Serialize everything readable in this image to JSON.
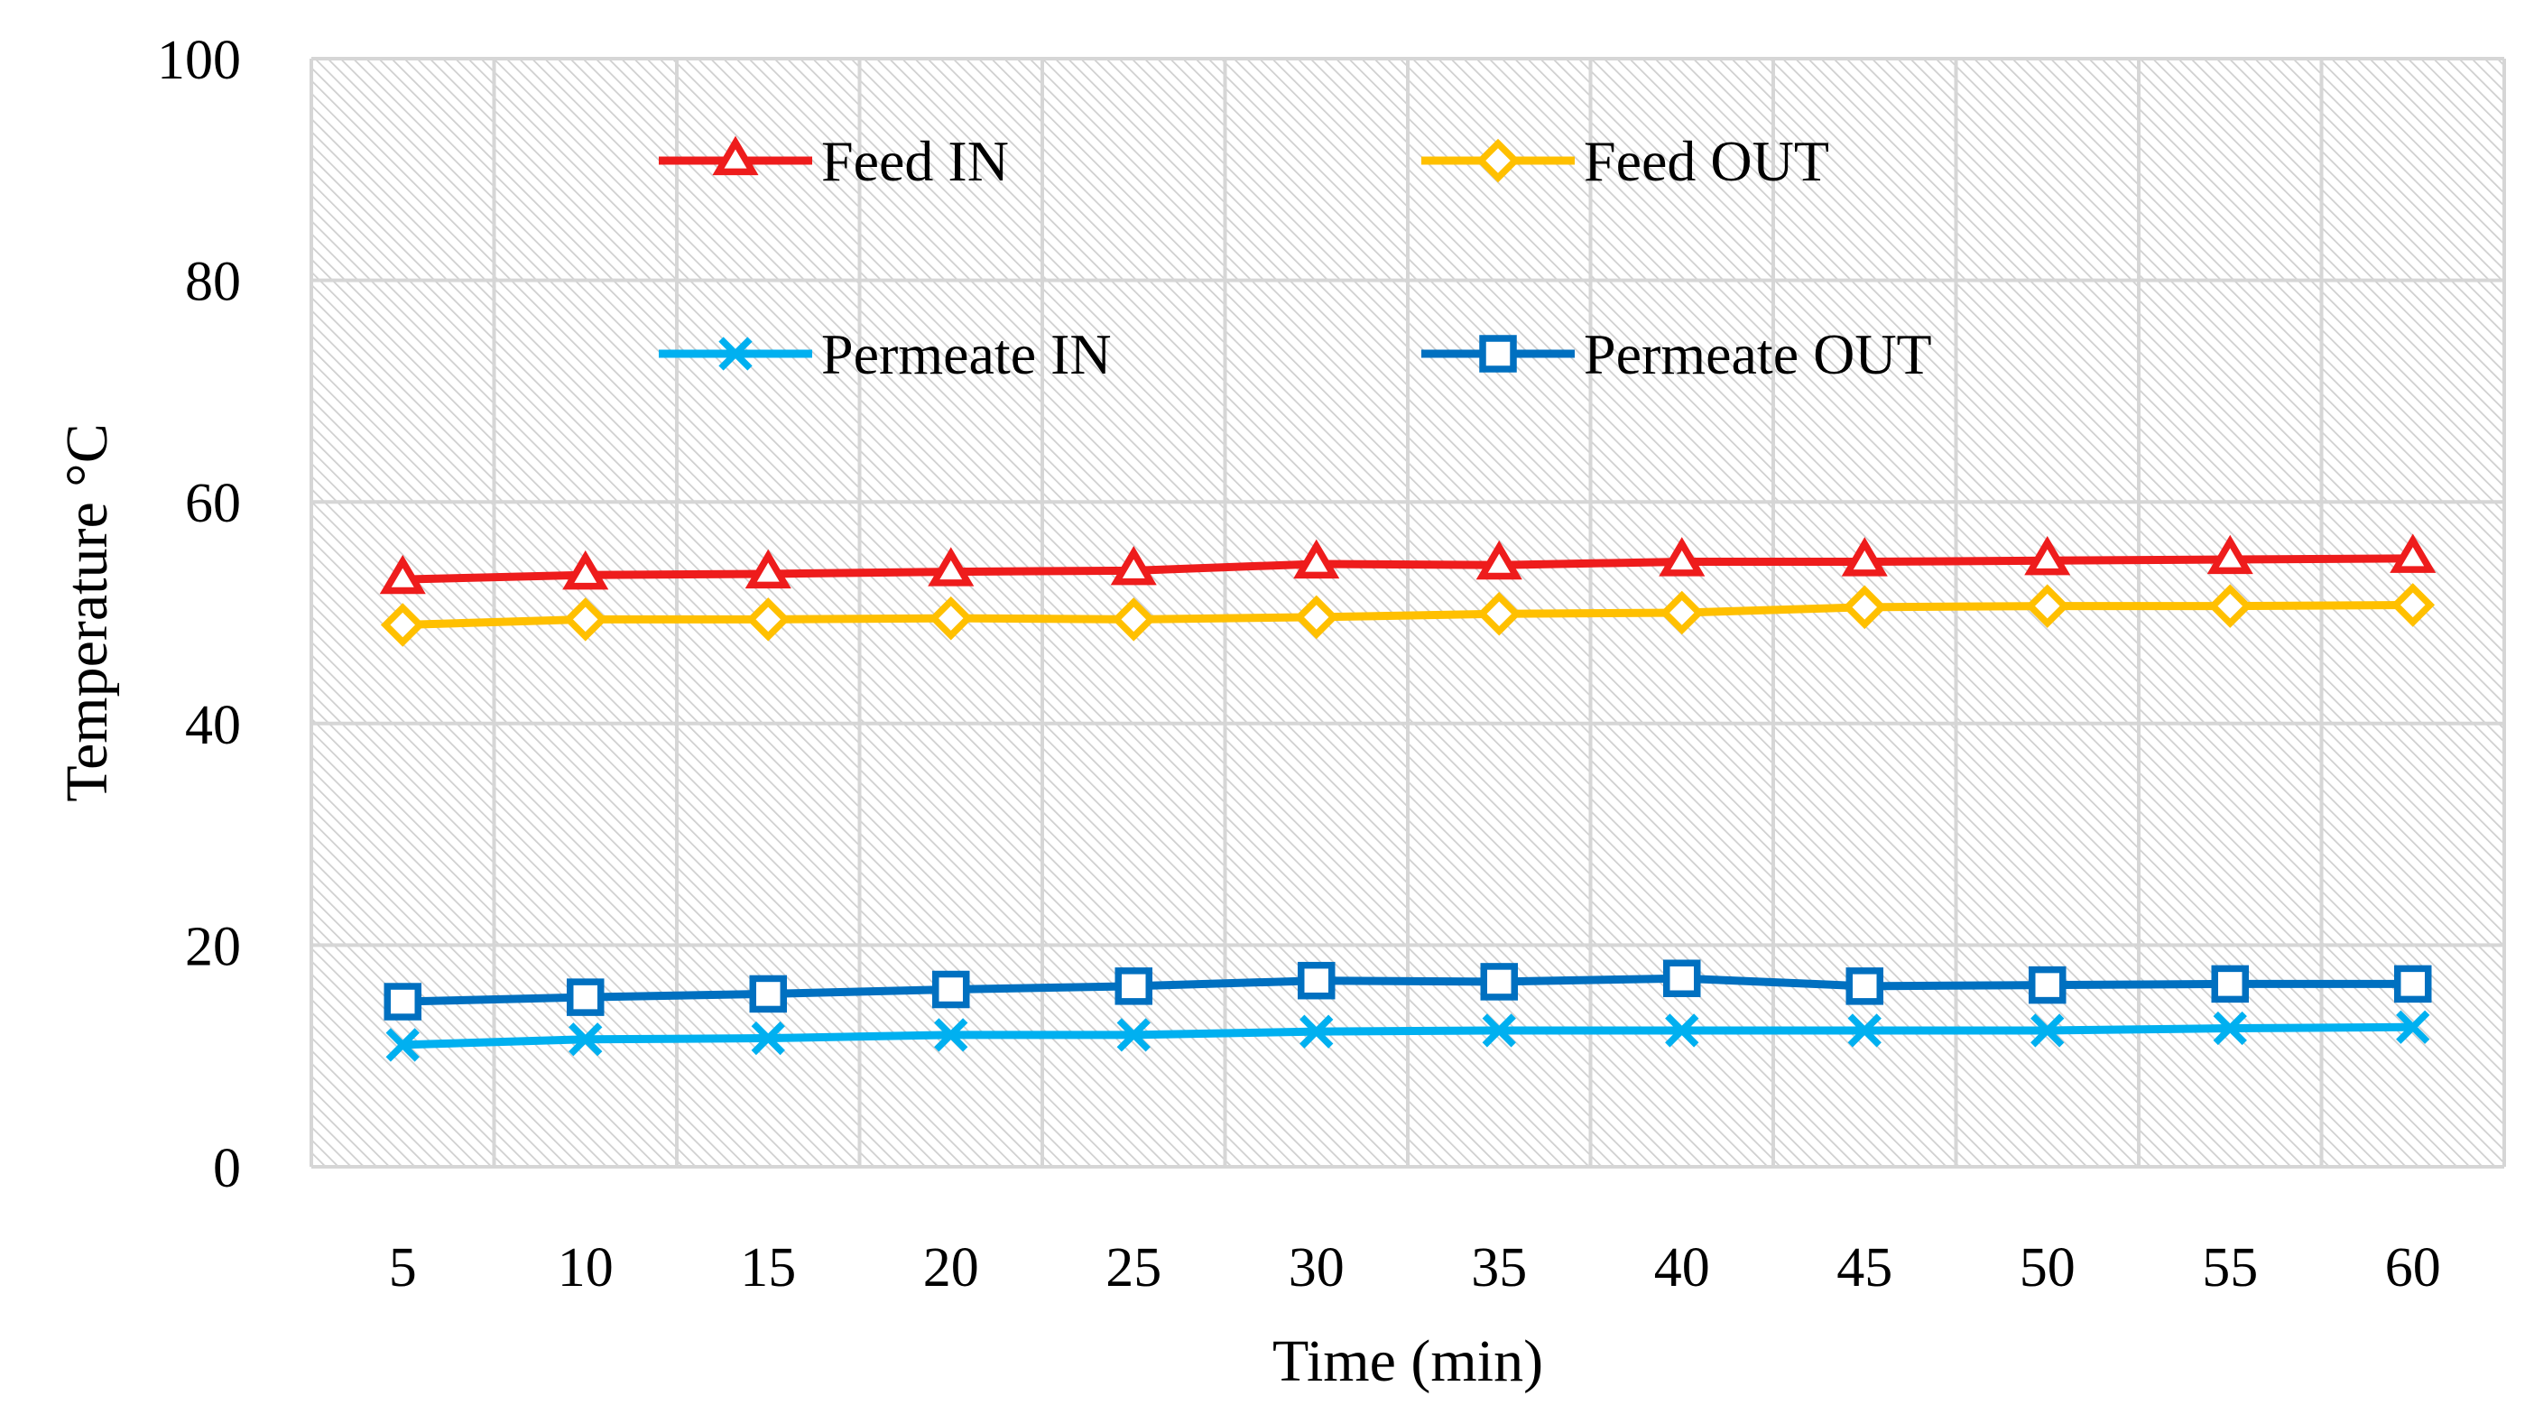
{
  "chart_data": {
    "type": "line",
    "title": "",
    "xlabel": "Time (min)",
    "ylabel": "Temperature °C",
    "ylim": [
      0,
      100
    ],
    "yticks": [
      0,
      20,
      40,
      60,
      80,
      100
    ],
    "grid": true,
    "legend_position": "top",
    "categories": [
      5,
      10,
      15,
      20,
      25,
      30,
      35,
      40,
      45,
      50,
      55,
      60
    ],
    "series": [
      {
        "name": "Feed IN",
        "color": "#ee1c1c",
        "marker": "triangle",
        "values": [
          53.0,
          53.4,
          53.5,
          53.7,
          53.8,
          54.4,
          54.3,
          54.6,
          54.6,
          54.7,
          54.8,
          54.9
        ]
      },
      {
        "name": "Feed OUT",
        "color": "#ffc000",
        "marker": "diamond",
        "values": [
          48.9,
          49.4,
          49.4,
          49.5,
          49.4,
          49.6,
          49.9,
          50.0,
          50.5,
          50.6,
          50.6,
          50.7
        ]
      },
      {
        "name": "Permeate IN",
        "color": "#00b0f0",
        "marker": "x",
        "values": [
          11.0,
          11.5,
          11.6,
          11.9,
          11.9,
          12.2,
          12.3,
          12.3,
          12.3,
          12.3,
          12.5,
          12.6
        ]
      },
      {
        "name": "Permeate OUT",
        "color": "#0070c0",
        "marker": "square",
        "values": [
          14.9,
          15.3,
          15.6,
          16.0,
          16.3,
          16.8,
          16.7,
          17.0,
          16.3,
          16.4,
          16.5,
          16.5
        ]
      }
    ]
  }
}
